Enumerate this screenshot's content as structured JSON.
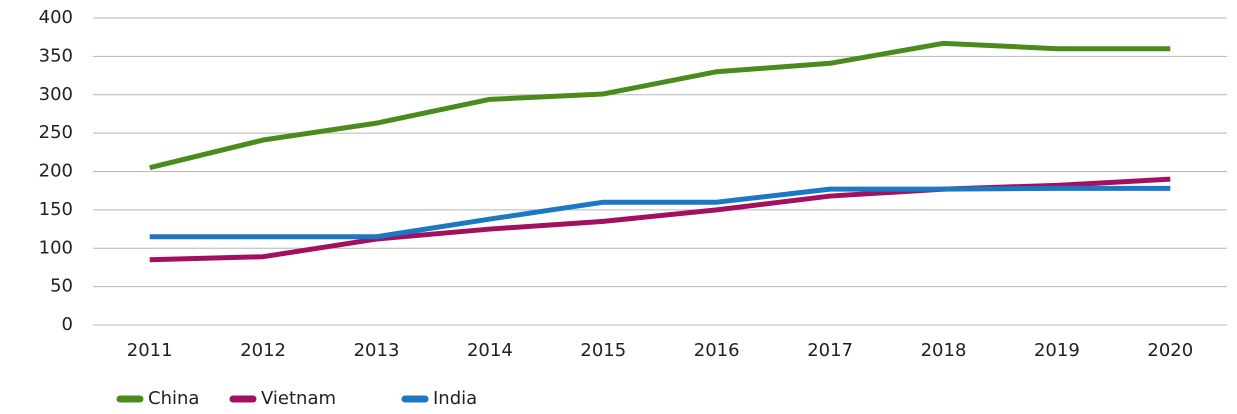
{
  "chart_data": {
    "type": "line",
    "categories": [
      "2011",
      "2012",
      "2013",
      "2014",
      "2015",
      "2016",
      "2017",
      "2018",
      "2019",
      "2020"
    ],
    "series": [
      {
        "name": "China",
        "color": "#4b8b1e",
        "values": [
          205,
          241,
          263,
          294,
          301,
          330,
          341,
          367,
          360,
          360
        ]
      },
      {
        "name": "Vietnam",
        "color": "#a3105f",
        "values": [
          85,
          89,
          112,
          125,
          135,
          150,
          168,
          177,
          182,
          190
        ]
      },
      {
        "name": "India",
        "color": "#1b78c2",
        "values": [
          115,
          115,
          115,
          138,
          160,
          160,
          177,
          177,
          178,
          178
        ]
      }
    ],
    "ylim": [
      0,
      400
    ],
    "yticks": [
      0,
      50,
      100,
      150,
      200,
      250,
      300,
      350,
      400
    ],
    "grid": true,
    "legend": "bottom-left"
  }
}
